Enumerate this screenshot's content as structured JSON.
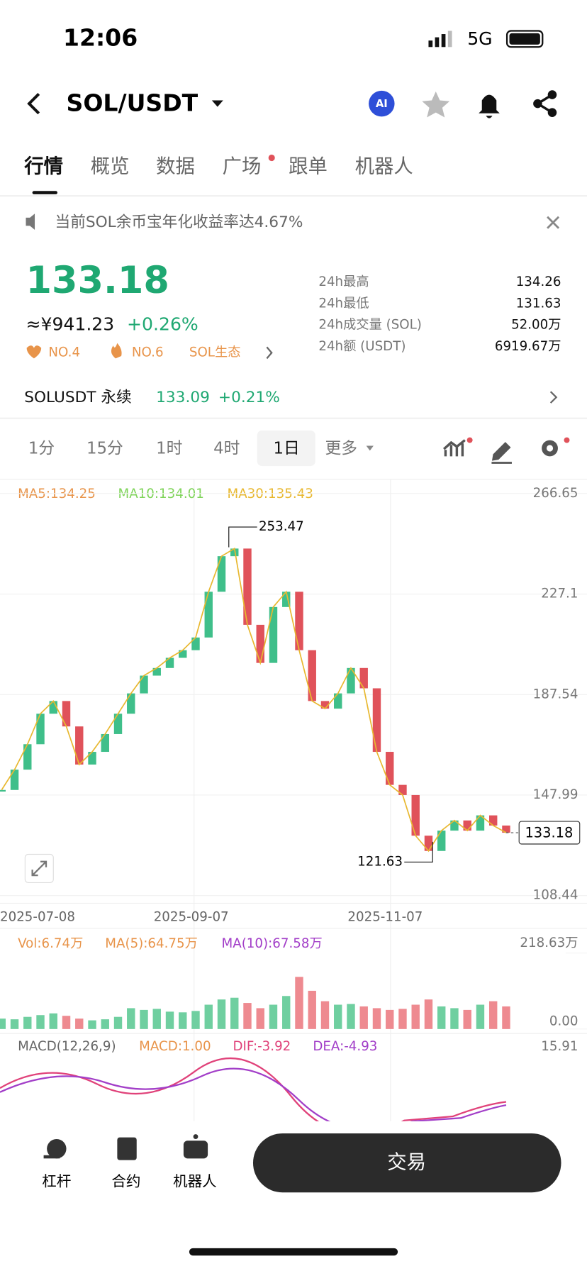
{
  "status": {
    "time": "12:06",
    "network": "5G"
  },
  "header": {
    "pair": "SOL/USDT",
    "ai": "AI"
  },
  "tabs": [
    "行情",
    "概览",
    "数据",
    "广场",
    "跟单",
    "机器人"
  ],
  "notice": "当前SOL余币宝年化收益率达4.67%",
  "ticker": {
    "price": "133.18",
    "cny": "≈¥941.23",
    "change": "+0.26%",
    "tags": [
      "NO.4",
      "NO.6",
      "SOL生态"
    ],
    "stats": [
      {
        "label": "24h最高",
        "value": "134.26"
      },
      {
        "label": "24h最低",
        "value": "131.63"
      },
      {
        "label": "24h成交量 (SOL)",
        "value": "52.00万"
      },
      {
        "label": "24h额 (USDT)",
        "value": "6919.67万"
      }
    ]
  },
  "perp": {
    "name": "SOLUSDT 永续",
    "price": "133.09",
    "change": "+0.21%"
  },
  "intervals": [
    "1分",
    "15分",
    "1时",
    "4时",
    "1日",
    "更多"
  ],
  "chart_data": {
    "type": "candlestick",
    "legend": [
      {
        "label": "MA5:134.25",
        "color": "#e8944a"
      },
      {
        "label": "MA10:134.01",
        "color": "#7fd45a"
      },
      {
        "label": "MA30:135.43",
        "color": "#e8b830"
      }
    ],
    "dates": [
      "2025-07-08",
      "2025-09-07",
      "2025-11-07"
    ],
    "ylim": [
      108.44,
      266.65
    ],
    "yticks": [
      108.44,
      147.99,
      187.54,
      227.1,
      266.65
    ],
    "closes": [
      150,
      158,
      168,
      180,
      185,
      175,
      160,
      165,
      172,
      180,
      188,
      195,
      198,
      202,
      205,
      210,
      228,
      242,
      245,
      215,
      200,
      222,
      228,
      205,
      185,
      182,
      188,
      198,
      190,
      165,
      152,
      148,
      132,
      126,
      134,
      138,
      134,
      140,
      136,
      133.18
    ],
    "high": 253.47,
    "low": 121.63,
    "last": 133.18
  },
  "volume": {
    "legend": [
      {
        "label": "Vol:6.74万",
        "color": "#e8944a"
      },
      {
        "label": "MA(5):64.75万",
        "color": "#e8944a"
      },
      {
        "label": "MA(10):67.58万",
        "color": "#a23ec8"
      }
    ],
    "ylim": [
      0,
      218.63
    ],
    "yticks": [
      {
        "value": 0,
        "label": "0.00"
      },
      {
        "value": 218.63,
        "label": "218.63万"
      }
    ],
    "values": [
      30,
      28,
      35,
      40,
      45,
      38,
      30,
      25,
      28,
      35,
      60,
      55,
      58,
      50,
      48,
      52,
      70,
      85,
      90,
      75,
      60,
      70,
      95,
      150,
      110,
      80,
      70,
      72,
      65,
      60,
      55,
      58,
      70,
      85,
      65,
      60,
      55,
      70,
      80,
      65
    ]
  },
  "macd": {
    "legend": [
      {
        "label": "MACD(12,26,9)",
        "color": "#666"
      },
      {
        "label": "MACD:1.00",
        "color": "#e8944a"
      },
      {
        "label": "DIF:-3.92",
        "color": "#e0427a"
      },
      {
        "label": "DEA:-4.93",
        "color": "#a23ec8"
      }
    ],
    "yticks": [
      15.91
    ]
  },
  "bottom": {
    "nav": [
      "杠杆",
      "合约",
      "机器人"
    ],
    "button": "交易"
  }
}
